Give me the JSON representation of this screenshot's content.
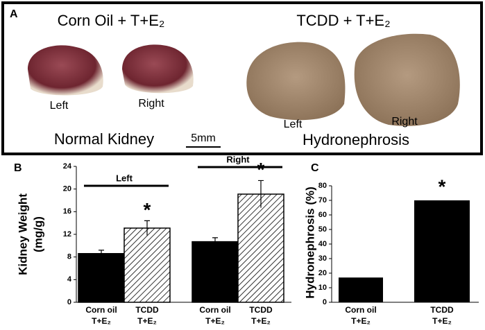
{
  "panel_a": {
    "panel_label": "A",
    "left_title": "Corn Oil + T+E₂",
    "right_title": "TCDD + T+E₂",
    "kidney_labels": [
      "Left",
      "Right",
      "Left",
      "Right"
    ],
    "left_caption": "Normal Kidney",
    "scale_bar": "5mm",
    "right_caption": "Hydronephrosis"
  },
  "chart_data": [
    {
      "type": "grouped_bar",
      "panel_label": "B",
      "ylabel": [
        "Kidney Weight",
        "(mg/g)"
      ],
      "groups": [
        "Left",
        "Right"
      ],
      "series": [
        {
          "name": "Corn oil",
          "sublabel": "T+E₂",
          "color": "#000000",
          "hatch": false,
          "values": [
            8.6,
            10.7
          ],
          "errors": [
            0.6,
            0.7
          ]
        },
        {
          "name": "TCDD",
          "sublabel": "T+E₂",
          "color": "#000000",
          "hatch": true,
          "values": [
            13.1,
            19.1
          ],
          "errors": [
            1.3,
            2.4
          ],
          "markers": [
            "*",
            "*"
          ]
        }
      ],
      "ylim": [
        0,
        24
      ],
      "yticks": [
        0,
        4,
        8,
        12,
        16,
        20,
        24
      ]
    },
    {
      "type": "bar",
      "panel_label": "C",
      "ylabel": "Hydronephrosis (%)",
      "categories": [
        "Corn oil",
        "TCDD"
      ],
      "category_sublabel": "T+E₂",
      "values": [
        17,
        70
      ],
      "markers": [
        null,
        "*"
      ],
      "color": "#000000",
      "ylim": [
        0,
        80
      ],
      "yticks": [
        0,
        10,
        20,
        30,
        40,
        50,
        60,
        70,
        80
      ]
    }
  ]
}
